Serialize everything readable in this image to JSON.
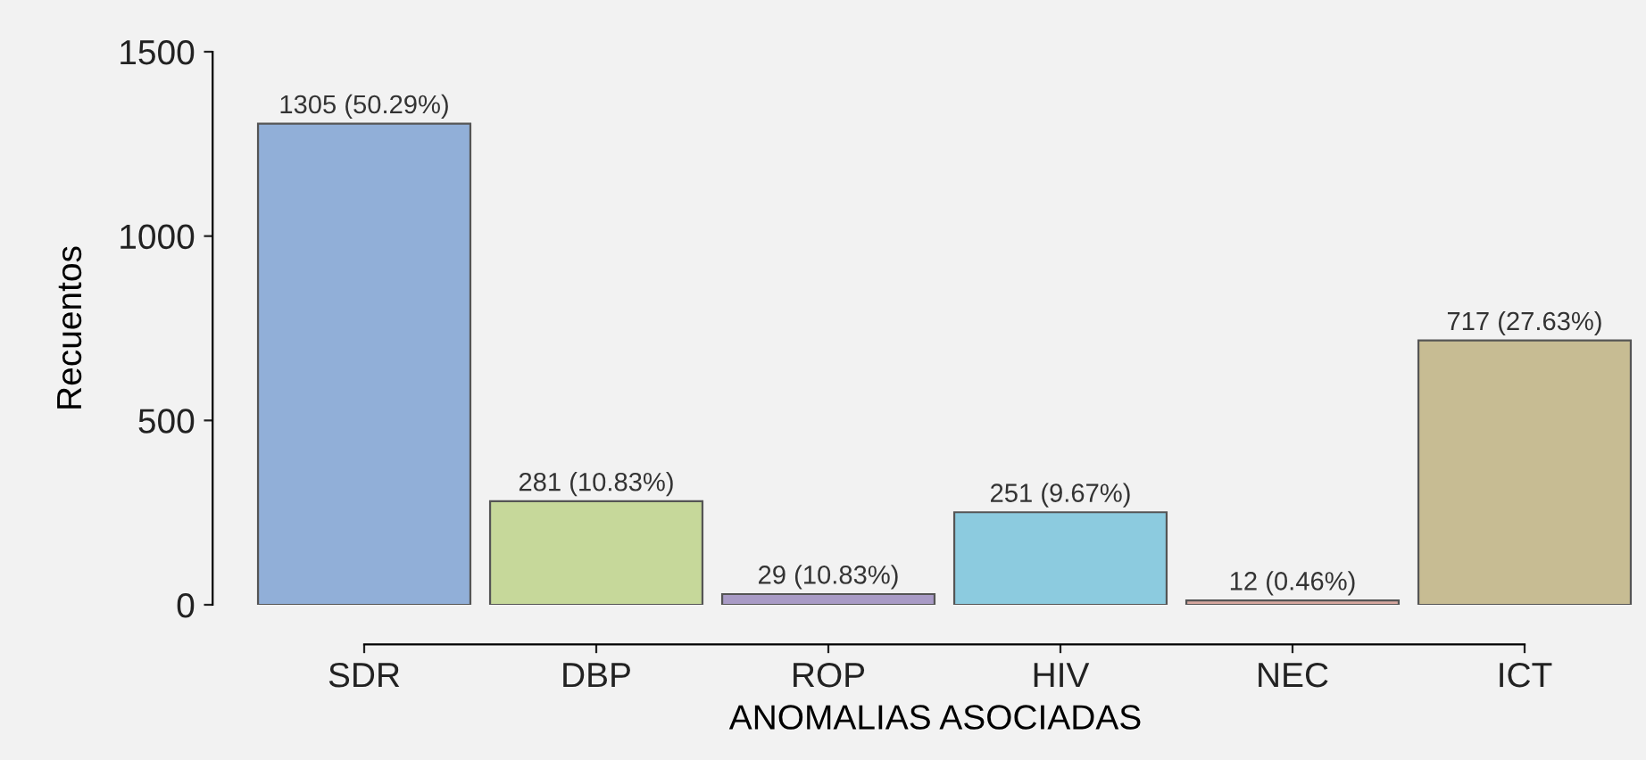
{
  "chart_data": {
    "type": "bar",
    "xlabel": "ANOMALIAS ASOCIADAS",
    "ylabel": "Recuentos",
    "categories": [
      "SDR",
      "DBP",
      "ROP",
      "HIV",
      "NEC",
      "ICT"
    ],
    "values": [
      1305,
      281,
      29,
      251,
      12,
      717
    ],
    "colors": [
      "#91afd8",
      "#c6d89a",
      "#a99bc6",
      "#8ccbdf",
      "#d7a8a0",
      "#c7bc93"
    ],
    "value_labels": [
      "1305 (50.29%)",
      "281 (10.83%)",
      "29 (10.83%)",
      "251 (9.67%)",
      "12 (0.46%)",
      "717 (27.63%)"
    ],
    "ylim": [
      0,
      1500
    ],
    "yticks": [
      0,
      500,
      1000,
      1500
    ],
    "grid": false
  }
}
